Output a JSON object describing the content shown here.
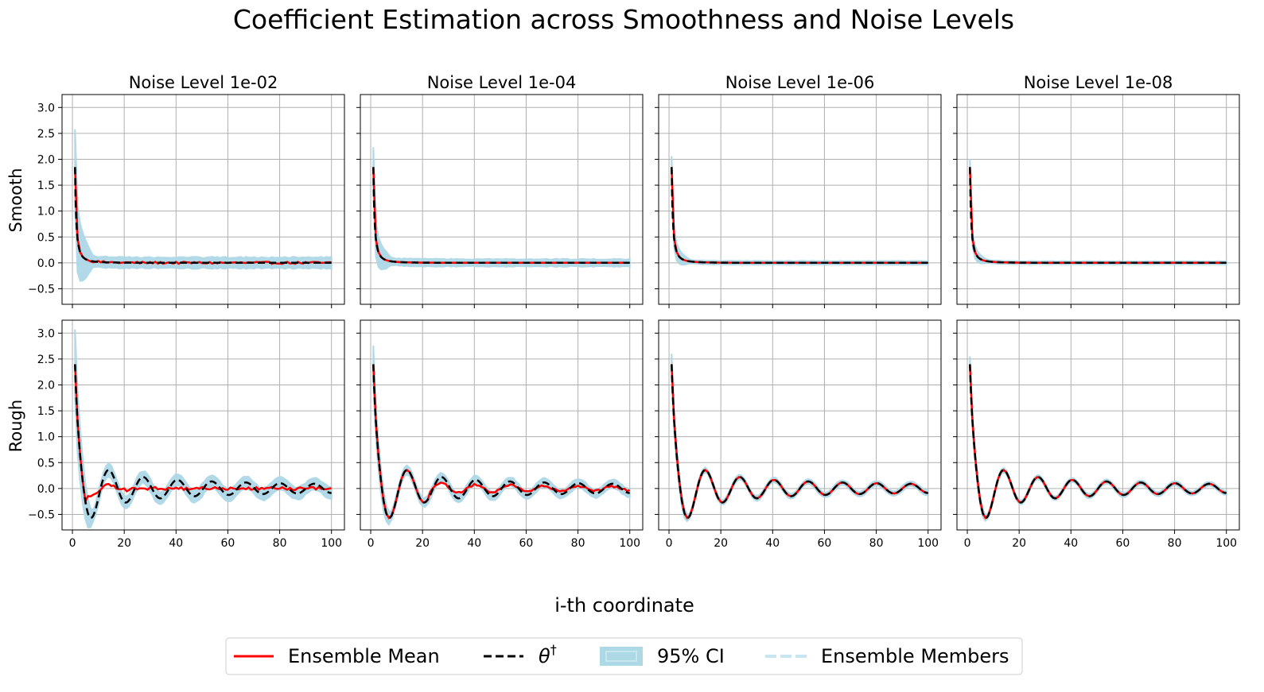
{
  "figure": {
    "title": "Coefficient Estimation across Smoothness and Noise Levels",
    "xlabel": "i-th coordinate"
  },
  "colors": {
    "mean": "#ff0000",
    "truth": "#000000",
    "ci": "#add8e6",
    "members": "#add8e6",
    "grid": "#b0b0b0"
  },
  "legend": {
    "mean": "Ensemble Mean",
    "truth": "θ",
    "truth_sup": "†",
    "ci": "95% CI",
    "members": "Ensemble Members"
  },
  "chart_data": {
    "type": "line",
    "columns": [
      "Noise Level 1e-02",
      "Noise Level 1e-04",
      "Noise Level 1e-06",
      "Noise Level 1e-08"
    ],
    "rows": [
      "Smooth",
      "Rough"
    ],
    "xlim": [
      -4,
      105
    ],
    "ylim": [
      -0.8,
      3.25
    ],
    "xticks": [
      0,
      20,
      40,
      60,
      80,
      100
    ],
    "yticks": [
      -0.5,
      0.0,
      0.5,
      1.0,
      1.5,
      2.0,
      2.5,
      3.0
    ],
    "grid": true,
    "legend_position": "bottom-center",
    "n_coordinates": 100,
    "truth": {
      "Smooth": {
        "formula": "1.85 * i^-2 (sharp decay to 0)",
        "start_value": 1.85
      },
      "Rough": {
        "formula": "2.4 * cos damped oscillation, period ~13",
        "start_value": 2.4,
        "first_minimum": -0.55,
        "first_minimum_at": 9,
        "second_peak": 0.32,
        "second_peak_at": 15
      }
    },
    "ci_halfwidth_estimate": {
      "Smooth": [
        0.09,
        0.06,
        0.03,
        0.025
      ],
      "Rough": [
        0.1,
        0.07,
        0.04,
        0.035
      ]
    },
    "mean_damping_estimate": {
      "Smooth": [
        1.0,
        1.0,
        1.0,
        1.0
      ],
      "Rough": [
        "strong (follows truth only for i<6)",
        "medium (follows truth to ~i=30)",
        "none",
        "none"
      ]
    }
  }
}
